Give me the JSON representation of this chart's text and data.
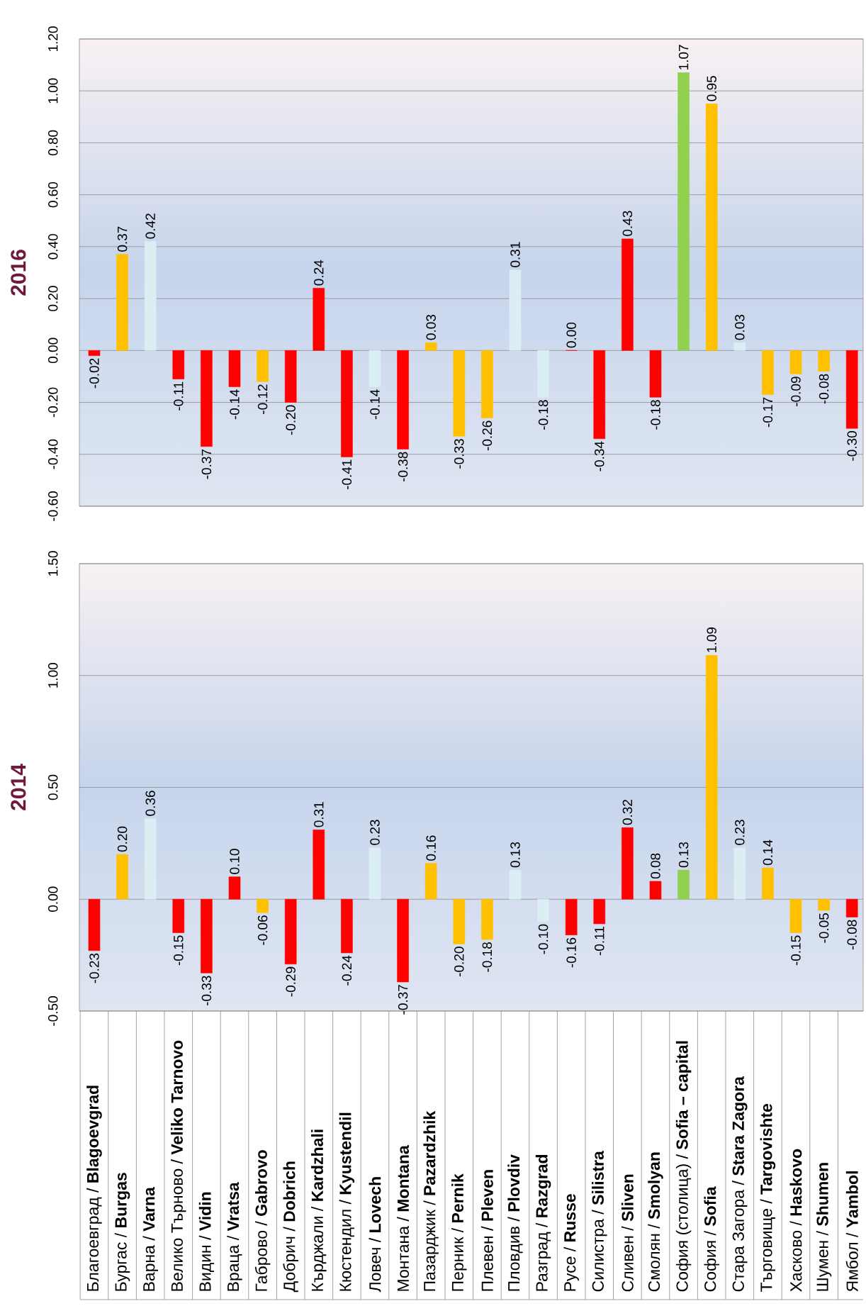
{
  "chart_data": [
    {
      "type": "bar",
      "ylabel": "2016",
      "categories": [
        null,
        null,
        null,
        null,
        null,
        null,
        null,
        null,
        null,
        null,
        null,
        null,
        null,
        null,
        null,
        null,
        null,
        null,
        null,
        null,
        null,
        null,
        null,
        null,
        null,
        null,
        null,
        null
      ],
      "values": [
        -0.02,
        0.37,
        0.42,
        -0.11,
        -0.37,
        -0.14,
        -0.12,
        -0.2,
        0.24,
        -0.41,
        -0.14,
        -0.38,
        0.03,
        -0.33,
        -0.26,
        0.31,
        -0.18,
        0.0,
        -0.34,
        0.43,
        -0.18,
        1.07,
        0.95,
        0.03,
        -0.17,
        -0.09,
        -0.08,
        -0.3
      ],
      "value_labels": [
        "-0.02",
        "0.37",
        "0.42",
        "-0.11",
        "-0.37",
        "-0.14",
        "-0.12",
        "-0.20",
        "0.24",
        "-0.41",
        "-0.14",
        "-0.38",
        "0.03",
        "-0.33",
        "-0.26",
        "0.31",
        "-0.18",
        "0.00",
        "-0.34",
        "0.43",
        "-0.18",
        "1.07",
        "0.95",
        "0.03",
        "-0.17",
        "-0.09",
        "-0.08",
        "-0.30"
      ],
      "colors": [
        "#ff0000",
        "#ffc000",
        "#daeef3",
        "#ff0000",
        "#ff0000",
        "#ff0000",
        "#ffc000",
        "#ff0000",
        "#ff0000",
        "#ff0000",
        "#daeef3",
        "#ff0000",
        "#ffc000",
        "#ffc000",
        "#ffc000",
        "#daeef3",
        "#daeef3",
        "#ff0000",
        "#ff0000",
        "#ff0000",
        "#ff0000",
        "#92d050",
        "#ffc000",
        "#daeef3",
        "#ffc000",
        "#ffc000",
        "#ffc000",
        "#ff0000"
      ],
      "ylim": [
        -0.6,
        1.2
      ],
      "yticks": [
        {
          "value": -0.6,
          "label": "-0.60"
        },
        {
          "value": -0.4,
          "label": "-0.40"
        },
        {
          "value": -0.2,
          "label": "-0.20"
        },
        {
          "value": 0,
          "label": "0.00"
        },
        {
          "value": 0.2,
          "label": "0.20"
        },
        {
          "value": 0.4,
          "label": "0.40"
        },
        {
          "value": 0.6,
          "label": "0.60"
        },
        {
          "value": 0.8,
          "label": "0.80"
        },
        {
          "value": 1.0,
          "label": "1.00"
        },
        {
          "value": 1.2,
          "label": "1.20"
        }
      ],
      "grid": "y",
      "tick_labels": "y"
    },
    {
      "type": "bar",
      "ylabel": "2014",
      "categories": [
        "Благоевград / **Blagoevgrad**",
        "Бургас / **Burgas**",
        "Варна / **Varna**",
        "Велико Търново / **Veliko Tarnovo**",
        "Видин / **Vidin**",
        "Враца / **Vratsa**",
        "Габрово / **Gabrovo**",
        "Добрич / **Dobrich**",
        "Кърджали / **Kardzhali**",
        "Кюстендил / **Kyustendil**",
        "Ловеч / **Lovech**",
        "Монтана / **Montana**",
        "Пазарджик / **Pazardzhik**",
        "Перник / **Pernik**",
        "Плевен / **Pleven**",
        "Пловдив / **Plovdiv**",
        "Разград / **Razgrad**",
        "Русе / **Russe**",
        "Силистра / **Silistra**",
        "Сливен / **Sliven**",
        "Смолян / **Smolyan**",
        "София (столица) / **Sofia – capital**",
        "София / **Sofia**",
        "Стара Загора / **Stara Zagora**",
        "Търговище / **Targovishte**",
        "Хасково / **Haskovo**",
        "Шумен / **Shumen**",
        "Ямбол / **Yambol**"
      ],
      "values": [
        -0.23,
        0.2,
        0.36,
        -0.15,
        -0.33,
        0.1,
        -0.06,
        -0.29,
        0.31,
        -0.24,
        0.23,
        -0.37,
        0.16,
        -0.2,
        -0.18,
        0.13,
        -0.1,
        -0.16,
        -0.11,
        0.32,
        0.08,
        0.13,
        1.09,
        0.23,
        0.14,
        -0.15,
        -0.05,
        -0.08
      ],
      "value_labels": [
        "-0.23",
        "0.20",
        "0.36",
        "-0.15",
        "-0.33",
        "0.10",
        "-0.06",
        "-0.29",
        "0.31",
        "-0.24",
        "0.23",
        "-0.37",
        "0.16",
        "-0.20",
        "-0.18",
        "0.13",
        "-0.10",
        "-0.16",
        "-0.11",
        "0.32",
        "0.08",
        "0.13",
        "1.09",
        "0.23",
        "0.14",
        "-0.15",
        "-0.05",
        "-0.08"
      ],
      "colors": [
        "#ff0000",
        "#ffc000",
        "#daeef3",
        "#ff0000",
        "#ff0000",
        "#ff0000",
        "#ffc000",
        "#ff0000",
        "#ff0000",
        "#ff0000",
        "#daeef3",
        "#ff0000",
        "#ffc000",
        "#ffc000",
        "#ffc000",
        "#daeef3",
        "#daeef3",
        "#ff0000",
        "#ff0000",
        "#ff0000",
        "#ff0000",
        "#92d050",
        "#ffc000",
        "#daeef3",
        "#ffc000",
        "#ffc000",
        "#ffc000",
        "#ff0000"
      ],
      "ylim": [
        -0.5,
        1.5
      ],
      "yticks": [
        {
          "value": -0.5,
          "label": "-0.50"
        },
        {
          "value": 0,
          "label": "0.00"
        },
        {
          "value": 0.5,
          "label": "0.50"
        },
        {
          "value": 1.0,
          "label": "1.00"
        },
        {
          "value": 1.5,
          "label": "1.50"
        }
      ],
      "grid": "y"
    }
  ]
}
